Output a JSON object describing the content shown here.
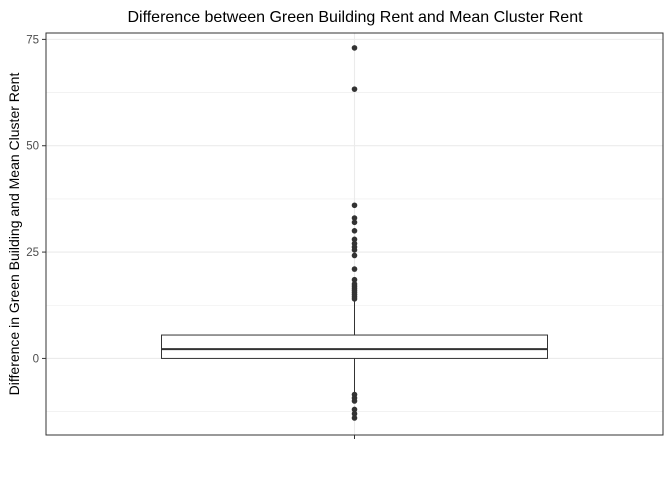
{
  "chart_data": {
    "type": "boxplot",
    "title": "Difference between Green Building Rent and Mean Cluster Rent",
    "xlabel": "",
    "ylabel": "Difference in Green Building and Mean Cluster Rent",
    "ylim": [
      -18,
      76.5
    ],
    "yticks": [
      0,
      25,
      50,
      75
    ],
    "grid": true,
    "box": {
      "q1": 0.0,
      "median": 2.2,
      "q3": 5.5,
      "whisker_low": -8.0,
      "whisker_high": 13.5
    },
    "outliers": [
      73.0,
      63.3,
      36.0,
      33.0,
      32.0,
      30.0,
      28.0,
      27.0,
      26.2,
      25.5,
      24.2,
      21.0,
      18.5,
      17.5,
      17.0,
      16.5,
      16.0,
      15.5,
      15.0,
      14.5,
      14.0,
      -8.5,
      -9.3,
      -10.0,
      -12.0,
      -13.0,
      -14.0
    ],
    "colors": {
      "grid": "#ebebeb",
      "panel_border": "#333333",
      "box": "#333333",
      "points": "#333333"
    }
  }
}
